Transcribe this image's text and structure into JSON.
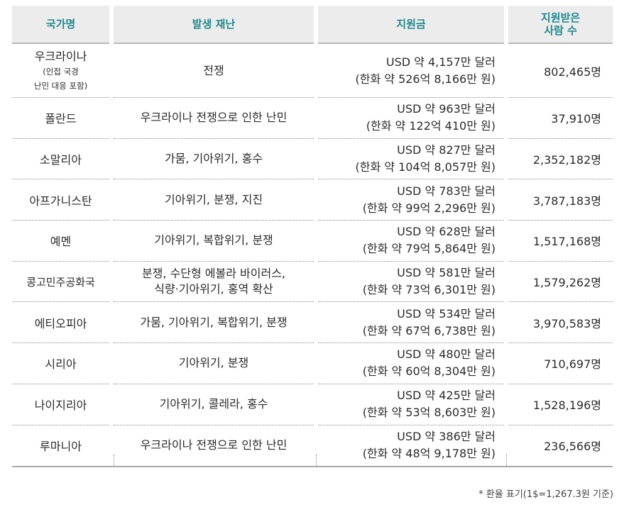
{
  "headers": {
    "country": "국가명",
    "disaster": "발생 재난",
    "amount": "지원금",
    "people_line1": "지원받은",
    "people_line2": "사람 수"
  },
  "rows": [
    {
      "country": "우크라이나",
      "country_sub1": "(인접 국경",
      "country_sub2": "난민 대응 포함)",
      "disaster": "전쟁",
      "amount_usd": "USD 약 4,157만 달러",
      "amount_krw": "(한화 약 526억 8,166만 원)",
      "people": "802,465명"
    },
    {
      "country": "폴란드",
      "disaster": "우크라이나 전쟁으로 인한 난민",
      "amount_usd": "USD 약 963만 달러",
      "amount_krw": "(한화 약 122억 410만 원)",
      "people": "37,910명"
    },
    {
      "country": "소말리아",
      "disaster": "가뭄, 기아위기, 홍수",
      "amount_usd": "USD 약 827만 달러",
      "amount_krw": "(한화 약 104억 8,057만 원)",
      "people": "2,352,182명"
    },
    {
      "country": "아프가니스탄",
      "disaster": "기아위기, 분쟁, 지진",
      "amount_usd": "USD 약 783만 달러",
      "amount_krw": "(한화 약 99억 2,296만 원)",
      "people": "3,787,183명"
    },
    {
      "country": "예멘",
      "disaster": "기아위기, 복합위기, 분쟁",
      "amount_usd": "USD 약 628만 달러",
      "amount_krw": "(한화 약 79억 5,864만 원)",
      "people": "1,517,168명"
    },
    {
      "country": "콩고민주공화국",
      "disaster_line1": "분쟁, 수단형 에볼라 바이러스,",
      "disaster_line2": "식량·기아위기, 홍역 확산",
      "amount_usd": "USD 약 581만 달러",
      "amount_krw": "(한화 약 73억 6,301만 원)",
      "people": "1,579,262명"
    },
    {
      "country": "에티오피아",
      "disaster": "가뭄, 기아위기, 복합위기, 분쟁",
      "amount_usd": "USD 약 534만 달러",
      "amount_krw": "(한화 약 67억 6,738만 원)",
      "people": "3,970,583명"
    },
    {
      "country": "시리아",
      "disaster": "기아위기, 분쟁",
      "amount_usd": "USD 약 480만 달러",
      "amount_krw": "(한화 약 60억 8,304만 원)",
      "people": "710,697명"
    },
    {
      "country": "나이지리아",
      "disaster": "기아위기, 콜레라, 홍수",
      "amount_usd": "USD 약 425만 달러",
      "amount_krw": "(한화 약 53억 8,603만 원)",
      "people": "1,528,196명"
    },
    {
      "country": "루마니아",
      "disaster": "우크라이나 전쟁으로 인한 난민",
      "amount_usd": "USD 약 386만 달러",
      "amount_krw": "(한화 약 48억 9,178만 원)",
      "people": "236,566명"
    }
  ],
  "footnote": "* 환율 표기(1$=1,267.3원 기준)"
}
